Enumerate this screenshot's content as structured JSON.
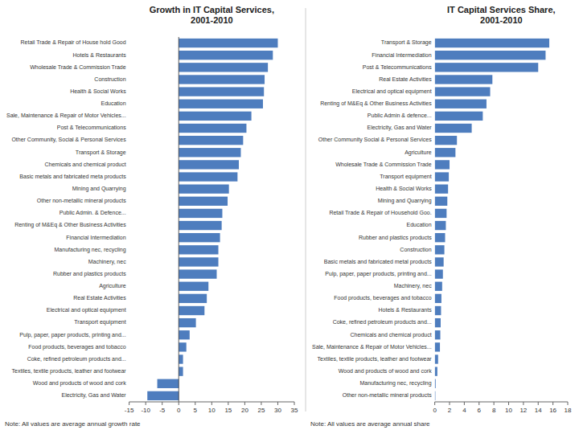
{
  "chart_data": [
    {
      "type": "bar",
      "orientation": "horizontal",
      "title": "Growth in IT Capital Services,\n2001-2010",
      "annotations": [
        "Note: All values are average annual growth rate"
      ],
      "categories": [
        "Retail Trade & Repair of House hold Good",
        "Hotels & Restaurants",
        "Wholesale Trade & Commission Trade",
        "Construction",
        "Health & Social Works",
        "Education",
        "Sale, Maintenance & Repair of Motor Vehicles...",
        "Post & Telecommunications",
        "Other Community, Social & Personal Services",
        "Transport & Storage",
        "Chemicals and chemical product",
        "Basic metals and fabricated meta products",
        "Mining and Quarrying",
        "Other non-metallic mineral products",
        "Public Admin. & Defence...",
        "Renting of M&Eq & Other Business Activities",
        "Financial Intermediation",
        "Manufacturing nec, recycling",
        "Machinery, nec",
        "Rubber and plastics products",
        "Agriculture",
        "Real Estate Activities",
        "Electrical and optical equipment",
        "Transport equipment",
        "Pulp, paper, paper products, printing and...",
        "Food products, beverages and tobacco",
        "Coke, refined petroleum products and...",
        "Textiles, textile products, leather and footwear",
        "Wood and products of wood and cork",
        "Electricity, Gas and Water"
      ],
      "values": [
        30.0,
        28.5,
        27.0,
        26.0,
        25.8,
        25.5,
        22.0,
        20.5,
        19.5,
        18.8,
        18.2,
        17.8,
        15.2,
        14.8,
        13.2,
        13.0,
        12.5,
        12.0,
        12.0,
        11.5,
        9.0,
        8.5,
        7.8,
        5.2,
        3.3,
        2.3,
        1.3,
        1.3,
        -6.5,
        -9.5
      ],
      "color": "#4E7DBE",
      "xlim": [
        -15,
        35
      ],
      "xticks": [
        -15,
        -10,
        -5,
        0,
        5,
        10,
        15,
        20,
        25,
        30,
        35
      ],
      "grid": false
    },
    {
      "type": "bar",
      "orientation": "horizontal",
      "title": "IT Capital Services Share,\n2001-2010",
      "annotations": [
        "Note: All values are average annual share"
      ],
      "categories": [
        "Transport & Storage",
        "Financial Intermediation",
        "Post & Telecommunications",
        "Real Estate Activities",
        "Electrical and optical equipment",
        "Renting of M&Eq & Other Business Activities",
        "Public Admin & defence...",
        "Electricity, Gas and Water",
        "Other Community Social & Personal Services",
        "Agriculture",
        "Wholesale Trade & Commission Trade",
        "Transport equipment",
        "Health & Social Works",
        "Mining and Quarrying",
        "Retail Trade & Repair of Household Goo.",
        "Education",
        "Rubber and plastics products",
        "Construction",
        "Basic metals and fabricated metal products",
        "Pulp, paper, paper products, printing and...",
        "Machinery, nec",
        "Food products, beverages and tobacco",
        "Hotels & Restaurants",
        "Coke, refined petroleum products and...",
        "Chemicals and chemical product",
        "Sale, Maintenance & Repair of Motor Vehicles...",
        "Textiles, textile products, leather and footwear",
        "Wood and products of wood and cork",
        "Manufacturing nec, recycling",
        "Other non-metallic mineral products"
      ],
      "values": [
        15.5,
        15.0,
        14.0,
        7.8,
        7.5,
        7.0,
        6.5,
        5.0,
        3.0,
        2.8,
        2.0,
        1.9,
        1.8,
        1.7,
        1.6,
        1.5,
        1.4,
        1.3,
        1.2,
        1.1,
        1.0,
        0.9,
        0.85,
        0.8,
        0.75,
        0.7,
        0.45,
        0.35,
        0.12,
        0.08
      ],
      "color": "#4E7DBE",
      "xlim": [
        0,
        18
      ],
      "xticks": [
        0,
        2,
        4,
        6,
        8,
        10,
        12,
        14,
        16,
        18
      ],
      "grid": false
    }
  ]
}
